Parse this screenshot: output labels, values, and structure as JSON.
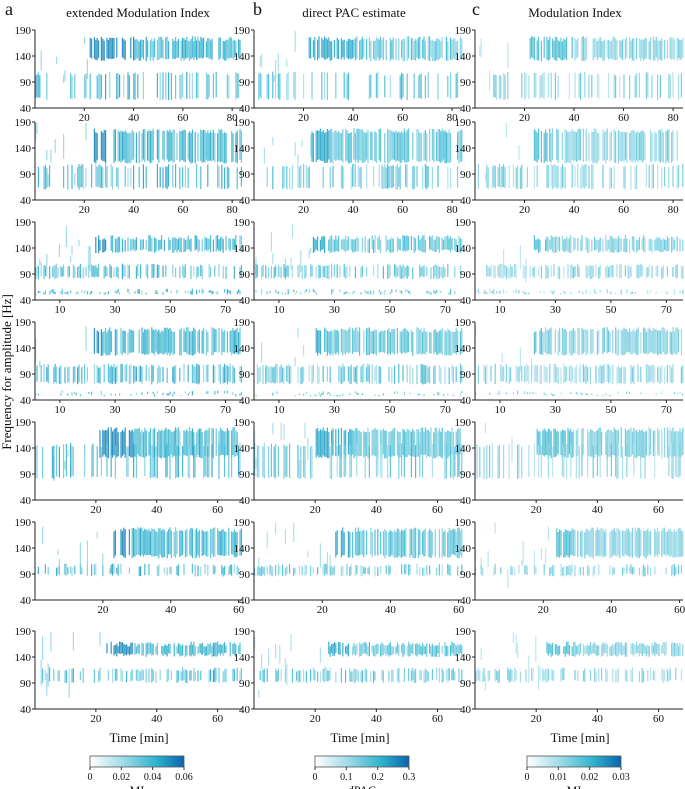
{
  "figure": {
    "panel_letters": [
      "a",
      "b",
      "c"
    ],
    "column_titles": [
      "extended Modulation Index",
      "direct PAC estimate",
      "Modulation Index"
    ],
    "ylabel": "Frequency for amplitude [Hz]",
    "xlabel": "Time [min]"
  },
  "chart_data": {
    "type": "heatmap",
    "y_ticks": [
      40,
      90,
      140,
      190
    ],
    "ylim": [
      40,
      190
    ],
    "rows": [
      {
        "xlim": [
          0,
          84
        ],
        "x_ticks": [
          20,
          40,
          60,
          80
        ],
        "start": 22,
        "burst_end": 40,
        "high": [
          130,
          178
        ],
        "low_bands": [
          [
            55,
            110,
            0.35
          ]
        ]
      },
      {
        "xlim": [
          0,
          84
        ],
        "x_ticks": [
          20,
          40,
          60,
          80
        ],
        "start": 23,
        "burst_end": 30,
        "high": [
          110,
          178
        ],
        "low_bands": [
          [
            60,
            110,
            0.45
          ]
        ]
      },
      {
        "xlim": [
          1,
          76
        ],
        "x_ticks": [
          10,
          30,
          50,
          70
        ],
        "start": 22,
        "burst_end": 27,
        "high": [
          130,
          165
        ],
        "low_bands": [
          [
            80,
            110,
            0.5
          ],
          [
            50,
            62,
            0.4
          ]
        ]
      },
      {
        "xlim": [
          1,
          76
        ],
        "x_ticks": [
          10,
          30,
          50,
          70
        ],
        "start": 22,
        "burst_end": 25,
        "high": [
          125,
          180
        ],
        "low_bands": [
          [
            70,
            110,
            0.55
          ],
          [
            48,
            58,
            0.3
          ]
        ]
      },
      {
        "xlim": [
          0,
          68
        ],
        "x_ticks": [
          20,
          40,
          60
        ],
        "start": 20,
        "burst_end": 32,
        "high": [
          120,
          180
        ],
        "low_bands": [
          [
            80,
            150,
            0.35
          ]
        ]
      },
      {
        "xlim": [
          0,
          61
        ],
        "x_ticks": [
          20,
          40,
          60
        ],
        "start": 23,
        "burst_end": 28,
        "high": [
          120,
          180
        ],
        "low_bands": [
          [
            85,
            110,
            0.4
          ]
        ]
      },
      {
        "xlim": [
          0,
          68
        ],
        "x_ticks": [
          20,
          40,
          60
        ],
        "start": 23,
        "burst_end": 32,
        "high": [
          140,
          170
        ],
        "low_bands": [
          [
            90,
            120,
            0.45
          ]
        ]
      }
    ],
    "colorbars": [
      {
        "label": "MI",
        "ticks": [
          "0",
          "0.02",
          "0.04",
          "0.06"
        ]
      },
      {
        "label": "dPAC",
        "ticks": [
          "0",
          "0.1",
          "0.2",
          "0.3"
        ]
      },
      {
        "label": "MI",
        "ticks": [
          "0",
          "0.01",
          "0.02",
          "0.03"
        ]
      }
    ],
    "colormap": [
      "#e8f6fb",
      "#8fd5e4",
      "#2fb4cf",
      "#0a6fb8"
    ],
    "x_grid": false,
    "y_grid": false
  }
}
